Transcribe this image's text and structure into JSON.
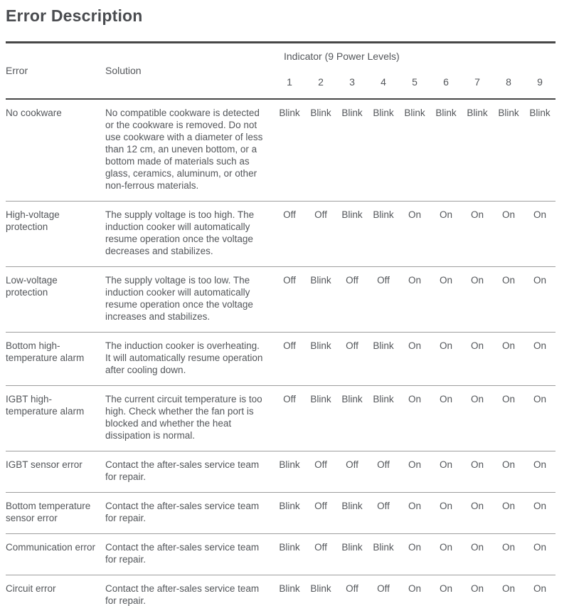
{
  "page": {
    "title": "Error Description"
  },
  "colors": {
    "text": "#53565a",
    "title": "#4a4c50",
    "rule_dark": "#474747",
    "rule_light": "#9d9d9d",
    "background": "#ffffff"
  },
  "table": {
    "headers": {
      "error": "Error",
      "solution": "Solution",
      "indicator_group": "Indicator (9 Power Levels)",
      "levels": [
        "1",
        "2",
        "3",
        "4",
        "5",
        "6",
        "7",
        "8",
        "9"
      ]
    },
    "rows": [
      {
        "error": "No cookware",
        "solution": "No compatible cookware is detected or the cookware is removed. Do not use cookware with a diameter of less than 12 cm, an uneven bottom, or a bottom made of materials such as glass, ceramics, aluminum, or other non-ferrous materials.",
        "indicators": [
          "Blink",
          "Blink",
          "Blink",
          "Blink",
          "Blink",
          "Blink",
          "Blink",
          "Blink",
          "Blink"
        ]
      },
      {
        "error": "High-voltage protection",
        "solution": "The supply voltage is too high. The induction cooker will automatically resume operation once the voltage decreases and stabilizes.",
        "indicators": [
          "Off",
          "Off",
          "Blink",
          "Blink",
          "On",
          "On",
          "On",
          "On",
          "On"
        ]
      },
      {
        "error": "Low-voltage protection",
        "solution": "The supply voltage is too low. The induction cooker will automatically resume operation once the voltage increases and stabilizes.",
        "indicators": [
          "Off",
          "Blink",
          "Off",
          "Off",
          "On",
          "On",
          "On",
          "On",
          "On"
        ]
      },
      {
        "error": "Bottom high-temperature alarm",
        "solution": "The induction cooker is overheating. It will automatically resume operation after cooling down.",
        "indicators": [
          "Off",
          "Blink",
          "Off",
          "Blink",
          "On",
          "On",
          "On",
          "On",
          "On"
        ]
      },
      {
        "error": "IGBT high-temperature alarm",
        "solution": "The current circuit temperature is too high. Check whether the fan port is blocked and whether the heat dissipation is normal.",
        "indicators": [
          "Off",
          "Blink",
          "Blink",
          "Blink",
          "On",
          "On",
          "On",
          "On",
          "On"
        ]
      },
      {
        "error": "IGBT sensor error",
        "solution": "Contact the after-sales service team for repair.",
        "indicators": [
          "Blink",
          "Off",
          "Off",
          "Off",
          "On",
          "On",
          "On",
          "On",
          "On"
        ]
      },
      {
        "error": "Bottom temperature sensor error",
        "solution": "Contact the after-sales service team for repair.",
        "indicators": [
          "Blink",
          "Off",
          "Blink",
          "Off",
          "On",
          "On",
          "On",
          "On",
          "On"
        ]
      },
      {
        "error": "Communication error",
        "solution": "Contact the after-sales service team for repair.",
        "indicators": [
          "Blink",
          "Off",
          "Blink",
          "Blink",
          "On",
          "On",
          "On",
          "On",
          "On"
        ]
      },
      {
        "error": "Circuit error",
        "solution": "Contact the after-sales service team for repair.",
        "indicators": [
          "Blink",
          "Blink",
          "Off",
          "Off",
          "On",
          "On",
          "On",
          "On",
          "On"
        ]
      }
    ]
  }
}
